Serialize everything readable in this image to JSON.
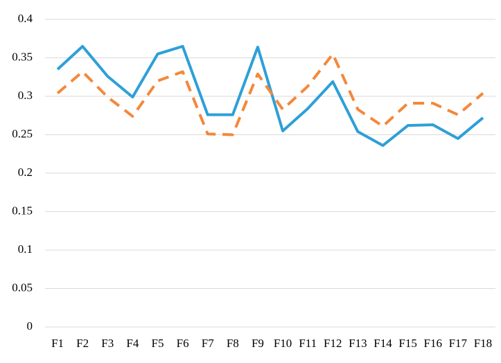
{
  "chart_data": {
    "type": "line",
    "categories": [
      "F1",
      "F2",
      "F3",
      "F4",
      "F5",
      "F6",
      "F7",
      "F8",
      "F9",
      "F10",
      "F11",
      "F12",
      "F13",
      "F14",
      "F15",
      "F16",
      "F17",
      "F18"
    ],
    "series": [
      {
        "color": "#2e9fd8",
        "line_style": "solid",
        "values": [
          0.335,
          0.365,
          0.326,
          0.299,
          0.355,
          0.365,
          0.276,
          0.276,
          0.364,
          0.255,
          0.284,
          0.319,
          0.254,
          0.236,
          0.262,
          0.263,
          0.245,
          0.272
        ]
      },
      {
        "color": "#f4883a",
        "line_style": "dashed",
        "values": [
          0.304,
          0.332,
          0.299,
          0.274,
          0.32,
          0.332,
          0.251,
          0.25,
          0.329,
          0.283,
          0.313,
          0.355,
          0.283,
          0.261,
          0.291,
          0.291,
          0.276,
          0.304
        ]
      }
    ],
    "ylim": [
      0,
      0.4
    ],
    "yticks": [
      0,
      0.05,
      0.1,
      0.15,
      0.2,
      0.25,
      0.3,
      0.35,
      0.4
    ],
    "grid": true
  }
}
